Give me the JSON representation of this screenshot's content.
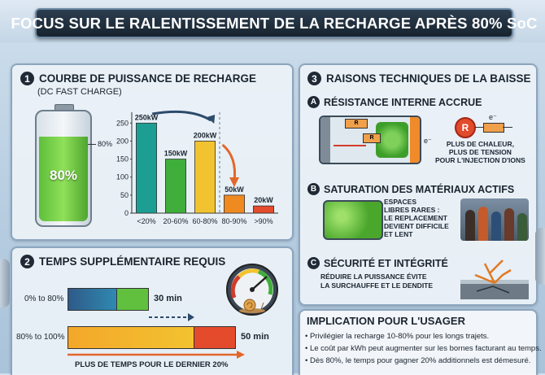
{
  "title": "FOCUS SUR LE RALENTISSEMENT DE LA RECHARGE APRÈS 80% SoC",
  "section1": {
    "num": "1",
    "title": "COURBE DE PUISSANCE DE RECHARGE",
    "subtitle": "(DC FAST CHARGE)",
    "battery_level": "80%",
    "battery_marker": "80%"
  },
  "chart_data": {
    "type": "bar",
    "categories": [
      "<20%",
      "20-60%",
      "60-80%",
      "80-90%",
      ">90%"
    ],
    "values": [
      250,
      150,
      200,
      50,
      20
    ],
    "bar_labels": [
      "250kW",
      "150kW",
      "200kW",
      "50kW",
      "20kW"
    ],
    "yticks": [
      "0",
      "50",
      "100",
      "150",
      "200",
      "250"
    ],
    "ylim": [
      0,
      280
    ],
    "colors": [
      "#1d9e92",
      "#3fae3a",
      "#f2c330",
      "#ef8a21",
      "#e44b2c"
    ]
  },
  "section2": {
    "num": "2",
    "title": "TEMPS SUPPLÉMENTAIRE REQUIS",
    "row1_label": "0% to 80%",
    "row1_time": "30 min",
    "row2_label": "80% to 100%",
    "row2_time": "50 min",
    "footer": "PLUS DE TEMPS POUR LE DERNIER 20%"
  },
  "section3": {
    "num": "3",
    "title": "RAISONS TECHNIQUES DE LA BAISSE",
    "a": {
      "letter": "A",
      "title": "RÉSISTANCE INTERNE ACCRUE",
      "r_label": "R",
      "e_label": "e⁻",
      "caption": [
        "PLUS DE CHALEUR,",
        "PLUS DE TENSION",
        "POUR L'INJECTION D'IONS"
      ]
    },
    "b": {
      "letter": "B",
      "title": "SATURATION DES MATÉRIAUX ACTIFS",
      "caption": [
        "ESPACES",
        "LIBRES RARES :",
        "LE REPLACEMENT",
        "DEVIENT DIFFICILE",
        "ET LENT"
      ]
    },
    "c": {
      "letter": "C",
      "title": "SÉCURITÉ ET INTÉGRITÉ",
      "caption": [
        "RÉDUIRE LA PUISSANCE ÉVITE",
        "LA SURCHAUFFE ET LE DENDITE"
      ]
    }
  },
  "implication": {
    "title": "IMPLICATION POUR L'USAGER",
    "bullets": [
      "• Privilégier la recharge 10-80% pour les longs trajets.",
      "• Le coût par kWh peut augmenter sur les bornes facturant au temps.",
      "• Dès 80%, le temps pour gagner 20% additionnels est démesuré."
    ]
  },
  "colors": {
    "title_bg": "#1b2733",
    "panel_border": "#8da6be",
    "green": "#3fae3a",
    "orange": "#ef8a21",
    "red": "#e44b2c"
  }
}
